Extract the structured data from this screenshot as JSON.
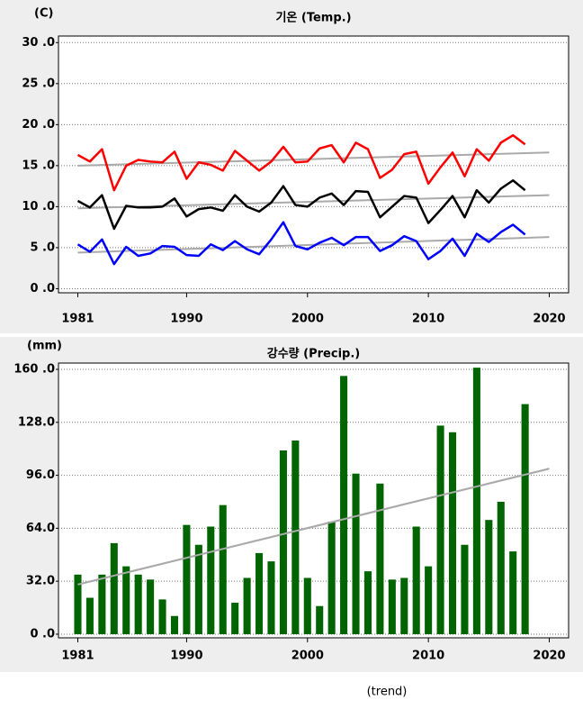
{
  "chart_data": [
    {
      "type": "line",
      "title": "기온 (Temp.)",
      "y_label": "(C)",
      "x": [
        1981,
        1982,
        1983,
        1984,
        1985,
        1986,
        1987,
        1988,
        1989,
        1990,
        1991,
        1992,
        1993,
        1994,
        1995,
        1996,
        1997,
        1998,
        1999,
        2000,
        2001,
        2002,
        2003,
        2004,
        2005,
        2006,
        2007,
        2008,
        2009,
        2010,
        2011,
        2012,
        2013,
        2014,
        2015,
        2016,
        2017,
        2018
      ],
      "series": [
        {
          "color": "#ff0000",
          "values": [
            16.3,
            15.5,
            17.0,
            12.0,
            15.0,
            15.7,
            15.5,
            15.4,
            16.7,
            13.4,
            15.4,
            15.1,
            14.4,
            16.8,
            15.6,
            14.4,
            15.5,
            17.3,
            15.4,
            15.5,
            17.1,
            17.5,
            15.4,
            17.8,
            17.0,
            13.5,
            14.5,
            16.4,
            16.7,
            12.8,
            14.8,
            16.6,
            13.7,
            17.0,
            15.6,
            17.8,
            18.7,
            17.6
          ]
        },
        {
          "color": "#000000",
          "values": [
            10.7,
            9.9,
            11.4,
            7.3,
            10.1,
            9.9,
            9.9,
            10.0,
            11.0,
            8.8,
            9.7,
            9.9,
            9.5,
            11.4,
            10.0,
            9.4,
            10.5,
            12.5,
            10.2,
            10.0,
            11.1,
            11.6,
            10.2,
            11.9,
            11.8,
            8.7,
            10.0,
            11.3,
            11.1,
            8.0,
            9.6,
            11.3,
            8.7,
            12.0,
            10.5,
            12.2,
            13.2,
            12.0
          ]
        },
        {
          "color": "#0000ff",
          "values": [
            5.4,
            4.5,
            6.0,
            3.0,
            5.1,
            4.0,
            4.3,
            5.2,
            5.1,
            4.1,
            4.0,
            5.4,
            4.7,
            5.8,
            4.8,
            4.2,
            6.0,
            8.1,
            5.2,
            4.8,
            5.6,
            6.2,
            5.3,
            6.3,
            6.3,
            4.6,
            5.3,
            6.4,
            5.8,
            3.6,
            4.6,
            6.1,
            4.0,
            6.7,
            5.7,
            6.9,
            7.8,
            6.6
          ]
        }
      ],
      "trends": [
        {
          "color": "#aaaaaa",
          "x": [
            1981,
            2020
          ],
          "values": [
            15.0,
            16.6
          ]
        },
        {
          "color": "#aaaaaa",
          "x": [
            1981,
            2020
          ],
          "values": [
            9.8,
            11.4
          ]
        },
        {
          "color": "#aaaaaa",
          "x": [
            1981,
            2020
          ],
          "values": [
            4.4,
            6.3
          ]
        }
      ],
      "xlim": [
        1979.4,
        2021.6
      ],
      "xticks": [
        1981,
        1990,
        2000,
        2010,
        2020
      ],
      "ylim": [
        -0.5,
        30.8
      ],
      "yticks": [
        {
          "value": 0,
          "label": "0 .0"
        },
        {
          "value": 5,
          "label": "5 .0"
        },
        {
          "value": 10,
          "label": "10 .0"
        },
        {
          "value": 15,
          "label": "15 .0"
        },
        {
          "value": 20,
          "label": "20 .0"
        },
        {
          "value": 25,
          "label": "25 .0"
        },
        {
          "value": 30,
          "label": "30 .0"
        }
      ],
      "grid": true
    },
    {
      "type": "bar",
      "title": "강수량 (Precip.)",
      "y_label": "(mm)",
      "color": "#006400",
      "x": [
        1981,
        1982,
        1983,
        1984,
        1985,
        1986,
        1987,
        1988,
        1989,
        1990,
        1991,
        1992,
        1993,
        1994,
        1995,
        1996,
        1997,
        1998,
        1999,
        2000,
        2001,
        2002,
        2003,
        2004,
        2005,
        2006,
        2007,
        2008,
        2009,
        2010,
        2011,
        2012,
        2013,
        2014,
        2015,
        2016,
        2017,
        2018
      ],
      "values": [
        36,
        22,
        36,
        55,
        41,
        36,
        33,
        21,
        11,
        66,
        54,
        65,
        78,
        19,
        34,
        49,
        44,
        111,
        117,
        34,
        17,
        68,
        156,
        97,
        38,
        91,
        33,
        34,
        65,
        41,
        126,
        122,
        54,
        161,
        69,
        80,
        50,
        139
      ],
      "trends": [
        {
          "color": "#aaaaaa",
          "x": [
            1981,
            2020
          ],
          "values": [
            30,
            100
          ]
        }
      ],
      "xlim": [
        1979.4,
        2021.6
      ],
      "xticks": [
        1981,
        1990,
        2000,
        2010,
        2020
      ],
      "ylim": [
        -2.2,
        163.8
      ],
      "yticks": [
        {
          "value": 0,
          "label": "0 .0"
        },
        {
          "value": 32,
          "label": "32.0"
        },
        {
          "value": 64,
          "label": "64.0"
        },
        {
          "value": 96,
          "label": "96.0"
        },
        {
          "value": 128,
          "label": "128.0"
        },
        {
          "value": 160,
          "label": "160 .0"
        }
      ],
      "grid": true
    }
  ],
  "caption": "(trend)"
}
